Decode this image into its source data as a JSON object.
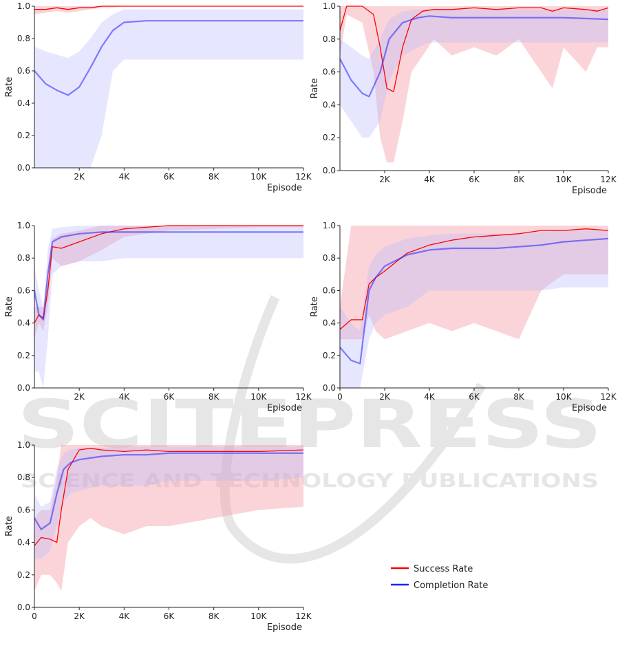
{
  "chart_data": [
    {
      "type": "line",
      "xlabel": "Episode",
      "ylabel": "Rate",
      "xlim": [
        0,
        12000
      ],
      "ylim": [
        0,
        1
      ],
      "xticks": [
        "2K",
        "4K",
        "6K",
        "8K",
        "10K",
        "12K"
      ],
      "yticks": [
        "0.0",
        "0.2",
        "0.4",
        "0.6",
        "0.8",
        "1.0"
      ],
      "series": [
        {
          "name": "Success Rate",
          "x": [
            0,
            500,
            1000,
            1500,
            2000,
            2500,
            3000,
            3500,
            4000,
            5000,
            6000,
            8000,
            10000,
            12000
          ],
          "y": [
            0.98,
            0.98,
            0.99,
            0.98,
            0.99,
            0.99,
            1.0,
            1.0,
            1.0,
            1.0,
            1.0,
            1.0,
            1.0,
            1.0
          ],
          "band_low": [
            0.95,
            0.96,
            0.97,
            0.96,
            0.97,
            0.98,
            0.99,
            0.99,
            1.0,
            1.0,
            1.0,
            1.0,
            1.0,
            1.0
          ],
          "band_high": [
            1.0,
            1.0,
            1.0,
            1.0,
            1.0,
            1.0,
            1.0,
            1.0,
            1.0,
            1.0,
            1.0,
            1.0,
            1.0,
            1.0
          ]
        },
        {
          "name": "Completion Rate",
          "x": [
            0,
            500,
            1000,
            1500,
            2000,
            2500,
            3000,
            3500,
            4000,
            5000,
            6000,
            8000,
            10000,
            12000
          ],
          "y": [
            0.6,
            0.52,
            0.48,
            0.45,
            0.5,
            0.62,
            0.75,
            0.85,
            0.9,
            0.91,
            0.91,
            0.91,
            0.91,
            0.91
          ],
          "band_low": [
            0.0,
            0.0,
            0.0,
            0.0,
            0.0,
            0.0,
            0.2,
            0.6,
            0.67,
            0.67,
            0.67,
            0.67,
            0.67,
            0.67
          ],
          "band_high": [
            0.75,
            0.72,
            0.7,
            0.68,
            0.72,
            0.8,
            0.9,
            0.95,
            0.98,
            0.98,
            0.98,
            0.98,
            0.98,
            0.98
          ]
        }
      ]
    },
    {
      "type": "line",
      "xlabel": "Episode",
      "ylabel": "Rate",
      "xlim": [
        0,
        12000
      ],
      "ylim": [
        0,
        1
      ],
      "xticks": [
        "2K",
        "4K",
        "6K",
        "8K",
        "10K",
        "12K"
      ],
      "yticks": [
        "0.0",
        "0.2",
        "0.4",
        "0.6",
        "0.8",
        "1.0"
      ],
      "series": [
        {
          "name": "Success Rate",
          "x": [
            0,
            300,
            1000,
            1500,
            1800,
            2100,
            2400,
            2800,
            3200,
            3700,
            4200,
            5000,
            6000,
            7000,
            8000,
            9000,
            9500,
            10000,
            11000,
            11500,
            12000
          ],
          "y": [
            0.85,
            1.0,
            1.0,
            0.95,
            0.75,
            0.5,
            0.48,
            0.75,
            0.92,
            0.97,
            0.98,
            0.98,
            0.99,
            0.98,
            0.99,
            0.99,
            0.97,
            0.99,
            0.98,
            0.97,
            0.99
          ],
          "band_low": [
            0.7,
            0.95,
            0.9,
            0.6,
            0.2,
            0.05,
            0.05,
            0.3,
            0.6,
            0.7,
            0.8,
            0.7,
            0.75,
            0.7,
            0.8,
            0.6,
            0.5,
            0.75,
            0.6,
            0.75,
            0.75
          ],
          "band_high": [
            1.0,
            1.0,
            1.0,
            1.0,
            1.0,
            1.0,
            1.0,
            1.0,
            1.0,
            1.0,
            1.0,
            1.0,
            1.0,
            1.0,
            1.0,
            1.0,
            1.0,
            1.0,
            1.0,
            1.0,
            1.0
          ]
        },
        {
          "name": "Completion Rate",
          "x": [
            0,
            500,
            1000,
            1300,
            1800,
            2200,
            2800,
            3500,
            4000,
            5000,
            6000,
            8000,
            10000,
            12000
          ],
          "y": [
            0.68,
            0.55,
            0.47,
            0.45,
            0.6,
            0.8,
            0.9,
            0.93,
            0.94,
            0.93,
            0.93,
            0.93,
            0.93,
            0.92
          ],
          "band_low": [
            0.4,
            0.3,
            0.2,
            0.2,
            0.3,
            0.55,
            0.7,
            0.75,
            0.78,
            0.78,
            0.78,
            0.78,
            0.78,
            0.78
          ],
          "band_high": [
            0.8,
            0.75,
            0.7,
            0.68,
            0.8,
            0.92,
            0.97,
            0.98,
            0.98,
            0.98,
            0.98,
            0.98,
            0.98,
            0.98
          ]
        }
      ]
    },
    {
      "type": "line",
      "xlabel": "Episode",
      "ylabel": "Rate",
      "xlim": [
        0,
        12000
      ],
      "ylim": [
        0,
        1
      ],
      "xticks": [
        "2K",
        "4K",
        "6K",
        "8K",
        "10K",
        "12K"
      ],
      "yticks": [
        "0.0",
        "0.2",
        "0.4",
        "0.6",
        "0.8",
        "1.0"
      ],
      "series": [
        {
          "name": "Success Rate",
          "x": [
            0,
            200,
            400,
            600,
            800,
            1200,
            2000,
            3000,
            4000,
            5000,
            6000,
            8000,
            10000,
            12000
          ],
          "y": [
            0.4,
            0.45,
            0.43,
            0.6,
            0.87,
            0.86,
            0.9,
            0.95,
            0.98,
            0.99,
            1.0,
            1.0,
            1.0,
            1.0
          ],
          "band_low": [
            0.3,
            0.4,
            0.35,
            0.5,
            0.8,
            0.75,
            0.78,
            0.85,
            0.93,
            0.95,
            0.97,
            0.98,
            0.99,
            0.99
          ],
          "band_high": [
            0.5,
            0.5,
            0.5,
            0.7,
            0.92,
            0.95,
            0.97,
            1.0,
            1.0,
            1.0,
            1.0,
            1.0,
            1.0,
            1.0
          ]
        },
        {
          "name": "Completion Rate",
          "x": [
            0,
            200,
            400,
            600,
            800,
            1200,
            2000,
            3000,
            4000,
            5000,
            6000,
            8000,
            10000,
            12000
          ],
          "y": [
            0.6,
            0.45,
            0.42,
            0.7,
            0.9,
            0.93,
            0.95,
            0.96,
            0.96,
            0.96,
            0.96,
            0.96,
            0.96,
            0.96
          ],
          "band_low": [
            0.1,
            0.1,
            0.0,
            0.3,
            0.7,
            0.75,
            0.78,
            0.78,
            0.8,
            0.8,
            0.8,
            0.8,
            0.8,
            0.8
          ],
          "band_high": [
            0.75,
            0.6,
            0.5,
            0.85,
            0.98,
            0.99,
            1.0,
            1.0,
            1.0,
            1.0,
            1.0,
            1.0,
            1.0,
            1.0
          ]
        }
      ]
    },
    {
      "type": "line",
      "xlabel": "Episode",
      "ylabel": "Rate",
      "xlim": [
        0,
        12000
      ],
      "ylim": [
        0,
        1
      ],
      "xticks": [
        "0",
        "2K",
        "4K",
        "6K",
        "8K",
        "10K",
        "12K"
      ],
      "yticks": [
        "0.0",
        "0.2",
        "0.4",
        "0.6",
        "0.8",
        "1.0"
      ],
      "series": [
        {
          "name": "Success Rate",
          "x": [
            0,
            500,
            1000,
            1300,
            1600,
            2000,
            3000,
            4000,
            5000,
            6000,
            7000,
            8000,
            9000,
            10000,
            11000,
            12000
          ],
          "y": [
            0.36,
            0.42,
            0.42,
            0.64,
            0.68,
            0.72,
            0.83,
            0.88,
            0.91,
            0.93,
            0.94,
            0.95,
            0.97,
            0.97,
            0.98,
            0.97
          ],
          "band_low": [
            0.3,
            0.3,
            0.3,
            0.45,
            0.35,
            0.3,
            0.35,
            0.4,
            0.35,
            0.4,
            0.35,
            0.3,
            0.6,
            0.7,
            0.7,
            0.7
          ],
          "band_high": [
            0.5,
            1.0,
            1.0,
            1.0,
            1.0,
            1.0,
            1.0,
            1.0,
            1.0,
            1.0,
            1.0,
            1.0,
            1.0,
            1.0,
            1.0,
            1.0
          ]
        },
        {
          "name": "Completion Rate",
          "x": [
            0,
            500,
            900,
            1300,
            1600,
            2000,
            3000,
            4000,
            5000,
            6000,
            7000,
            8000,
            9000,
            10000,
            11000,
            12000
          ],
          "y": [
            0.25,
            0.17,
            0.15,
            0.6,
            0.68,
            0.75,
            0.82,
            0.85,
            0.86,
            0.86,
            0.86,
            0.87,
            0.88,
            0.9,
            0.91,
            0.92
          ],
          "band_low": [
            0.0,
            0.0,
            0.0,
            0.3,
            0.4,
            0.45,
            0.5,
            0.6,
            0.6,
            0.6,
            0.6,
            0.6,
            0.6,
            0.62,
            0.62,
            0.62
          ],
          "band_high": [
            0.5,
            0.4,
            0.35,
            0.75,
            0.82,
            0.87,
            0.92,
            0.94,
            0.95,
            0.95,
            0.95,
            0.95,
            0.96,
            0.97,
            0.97,
            0.97
          ]
        }
      ]
    },
    {
      "type": "line",
      "xlabel": "Episode",
      "ylabel": "Rate",
      "xlim": [
        0,
        12000
      ],
      "ylim": [
        0,
        1
      ],
      "xticks": [
        "0",
        "2K",
        "4K",
        "6K",
        "8K",
        "10K",
        "12K"
      ],
      "yticks": [
        "0.0",
        "0.2",
        "0.4",
        "0.6",
        "0.8",
        "1.0"
      ],
      "series": [
        {
          "name": "Success Rate",
          "x": [
            0,
            300,
            700,
            1000,
            1200,
            1500,
            2000,
            2500,
            3000,
            4000,
            5000,
            6000,
            8000,
            10000,
            12000
          ],
          "y": [
            0.38,
            0.43,
            0.42,
            0.4,
            0.6,
            0.85,
            0.97,
            0.98,
            0.97,
            0.96,
            0.97,
            0.96,
            0.96,
            0.96,
            0.97
          ],
          "band_low": [
            0.1,
            0.2,
            0.2,
            0.15,
            0.1,
            0.4,
            0.5,
            0.55,
            0.5,
            0.45,
            0.5,
            0.5,
            0.55,
            0.6,
            0.62
          ],
          "band_high": [
            0.55,
            0.6,
            0.6,
            0.8,
            1.0,
            1.0,
            1.0,
            1.0,
            1.0,
            1.0,
            1.0,
            1.0,
            1.0,
            1.0,
            1.0
          ]
        },
        {
          "name": "Completion Rate",
          "x": [
            0,
            300,
            700,
            1000,
            1300,
            1600,
            2000,
            3000,
            4000,
            5000,
            6000,
            8000,
            10000,
            12000
          ],
          "y": [
            0.55,
            0.48,
            0.52,
            0.7,
            0.85,
            0.89,
            0.91,
            0.93,
            0.94,
            0.94,
            0.95,
            0.95,
            0.95,
            0.95
          ],
          "band_low": [
            0.3,
            0.3,
            0.35,
            0.5,
            0.65,
            0.7,
            0.72,
            0.75,
            0.75,
            0.75,
            0.78,
            0.78,
            0.78,
            0.8
          ],
          "band_high": [
            0.7,
            0.62,
            0.65,
            0.85,
            0.95,
            0.97,
            0.98,
            0.98,
            0.99,
            0.99,
            0.99,
            0.99,
            0.99,
            0.99
          ]
        }
      ]
    }
  ],
  "legend": {
    "success_label": "Success Rate",
    "completion_label": "Completion Rate"
  },
  "colors": {
    "success": "#ff0000",
    "success_band": "#f4a0a8",
    "completion": "#2020ff",
    "completion_band": "#b8b8ff"
  },
  "watermark": {
    "title": "SCITEPRESS",
    "subtitle": "SCIENCE AND TECHNOLOGY PUBLICATIONS"
  }
}
